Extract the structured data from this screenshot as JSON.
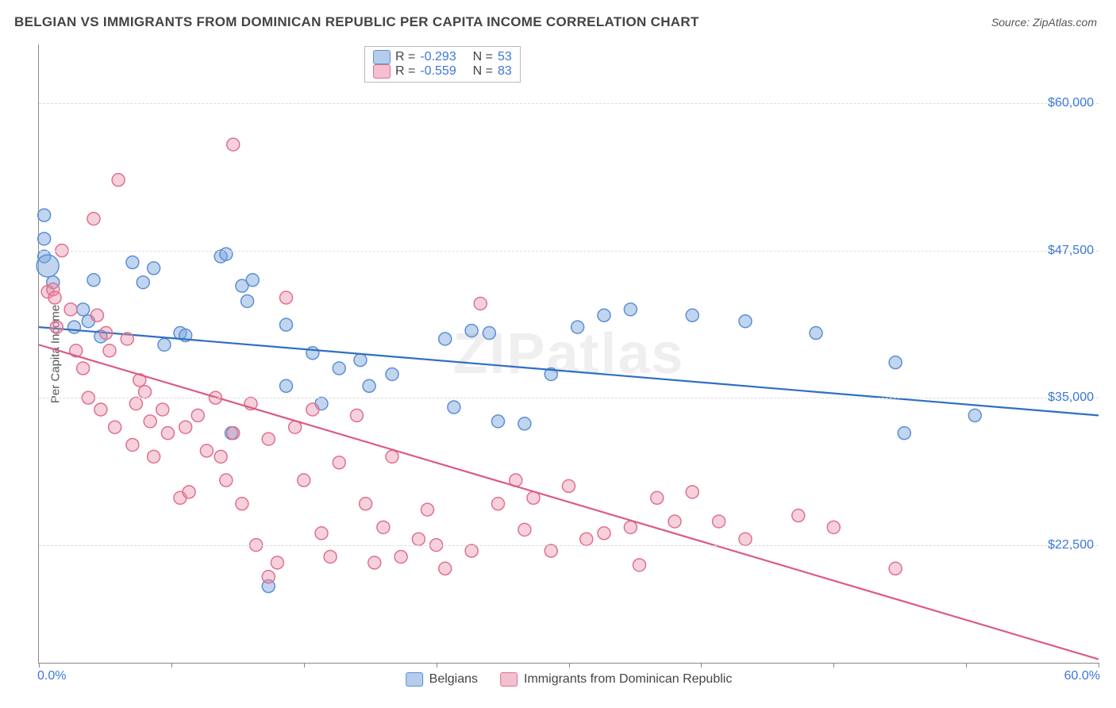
{
  "header": {
    "title": "BELGIAN VS IMMIGRANTS FROM DOMINICAN REPUBLIC PER CAPITA INCOME CORRELATION CHART",
    "source_prefix": "Source: ",
    "source": "ZipAtlas.com"
  },
  "watermark": "ZIPatlas",
  "chart": {
    "type": "scatter",
    "ylabel": "Per Capita Income",
    "xlim": [
      0,
      60
    ],
    "ylim": [
      12500,
      65000
    ],
    "yticks": [
      22500,
      35000,
      47500,
      60000
    ],
    "ytick_labels": [
      "$22,500",
      "$35,000",
      "$47,500",
      "$60,000"
    ],
    "xticks": [
      0,
      7.5,
      15,
      22.5,
      30,
      37.5,
      45,
      52.5,
      60
    ],
    "x_left_label": "0.0%",
    "x_right_label": "60.0%",
    "background_color": "#ffffff",
    "grid_color": "#dddddd",
    "axis_color": "#888888",
    "marker_radius": 8,
    "marker_stroke_width": 1.5,
    "line_width": 2.2,
    "series": [
      {
        "name": "Belgians",
        "color_fill": "rgba(120,162,219,0.45)",
        "color_stroke": "#5b8fd6",
        "line_color": "#2f6fc1",
        "R": "-0.293",
        "N": "53",
        "regression": {
          "x1": 0,
          "y1": 41000,
          "x2": 60,
          "y2": 33500
        },
        "points": [
          [
            0.3,
            50500
          ],
          [
            0.3,
            48500
          ],
          [
            0.3,
            47000
          ],
          [
            0.5,
            46200,
            14
          ],
          [
            0.8,
            44800
          ],
          [
            2.0,
            41000
          ],
          [
            2.5,
            42500
          ],
          [
            2.8,
            41500
          ],
          [
            3.1,
            45000
          ],
          [
            3.5,
            40200
          ],
          [
            5.3,
            46500
          ],
          [
            5.9,
            44800
          ],
          [
            6.5,
            46000
          ],
          [
            7.1,
            39500
          ],
          [
            8.0,
            40500
          ],
          [
            8.3,
            40300
          ],
          [
            10.3,
            47000
          ],
          [
            10.6,
            47200
          ],
          [
            10.9,
            32000
          ],
          [
            11.5,
            44500
          ],
          [
            11.8,
            43200
          ],
          [
            12.1,
            45000
          ],
          [
            13.0,
            19000
          ],
          [
            14.0,
            41200
          ],
          [
            14.0,
            36000
          ],
          [
            15.5,
            38800
          ],
          [
            16.0,
            34500
          ],
          [
            17.0,
            37500
          ],
          [
            18.2,
            38200
          ],
          [
            18.7,
            36000
          ],
          [
            20.0,
            37000
          ],
          [
            23.0,
            40000
          ],
          [
            23.5,
            34200
          ],
          [
            24.5,
            40700
          ],
          [
            25.5,
            40500
          ],
          [
            26.0,
            33000
          ],
          [
            27.5,
            32800
          ],
          [
            29.0,
            37000
          ],
          [
            30.5,
            41000
          ],
          [
            32.0,
            42000
          ],
          [
            33.5,
            42500
          ],
          [
            37.0,
            42000
          ],
          [
            40.0,
            41500
          ],
          [
            44.0,
            40500
          ],
          [
            48.5,
            38000
          ],
          [
            49.0,
            32000
          ],
          [
            53.0,
            33500
          ]
        ]
      },
      {
        "name": "Immigrants from Dominican Republic",
        "color_fill": "rgba(232,140,165,0.40)",
        "color_stroke": "#e0708f",
        "line_color": "#db5b82",
        "R": "-0.559",
        "N": "83",
        "regression": {
          "x1": 0,
          "y1": 39500,
          "x2": 60,
          "y2": 12800
        },
        "points": [
          [
            0.5,
            44000
          ],
          [
            0.8,
            44200
          ],
          [
            0.9,
            43500
          ],
          [
            1.0,
            41000
          ],
          [
            1.3,
            47500
          ],
          [
            1.8,
            42500
          ],
          [
            2.1,
            39000
          ],
          [
            2.5,
            37500
          ],
          [
            2.8,
            35000
          ],
          [
            3.1,
            50200
          ],
          [
            3.3,
            42000
          ],
          [
            3.5,
            34000
          ],
          [
            3.8,
            40500
          ],
          [
            4.0,
            39000
          ],
          [
            4.3,
            32500
          ],
          [
            4.5,
            53500
          ],
          [
            5.0,
            40000
          ],
          [
            5.3,
            31000
          ],
          [
            5.5,
            34500
          ],
          [
            5.7,
            36500
          ],
          [
            6.0,
            35500
          ],
          [
            6.3,
            33000
          ],
          [
            6.5,
            30000
          ],
          [
            7.0,
            34000
          ],
          [
            7.3,
            32000
          ],
          [
            8.0,
            26500
          ],
          [
            8.3,
            32500
          ],
          [
            8.5,
            27000
          ],
          [
            9.0,
            33500
          ],
          [
            9.5,
            30500
          ],
          [
            10.0,
            35000
          ],
          [
            10.3,
            30000
          ],
          [
            10.6,
            28000
          ],
          [
            11.0,
            56500
          ],
          [
            11.0,
            32000
          ],
          [
            11.5,
            26000
          ],
          [
            12.0,
            34500
          ],
          [
            12.3,
            22500
          ],
          [
            13.0,
            31500
          ],
          [
            13.0,
            19800
          ],
          [
            13.5,
            21000
          ],
          [
            14.0,
            43500
          ],
          [
            14.5,
            32500
          ],
          [
            15.0,
            28000
          ],
          [
            15.5,
            34000
          ],
          [
            16.0,
            23500
          ],
          [
            16.5,
            21500
          ],
          [
            17.0,
            29500
          ],
          [
            18.0,
            33500
          ],
          [
            18.5,
            26000
          ],
          [
            19.0,
            21000
          ],
          [
            19.5,
            24000
          ],
          [
            20.0,
            30000
          ],
          [
            20.5,
            21500
          ],
          [
            21.5,
            23000
          ],
          [
            22.0,
            25500
          ],
          [
            22.5,
            22500
          ],
          [
            23.0,
            20500
          ],
          [
            24.5,
            22000
          ],
          [
            25.0,
            43000
          ],
          [
            26.0,
            26000
          ],
          [
            27.0,
            28000
          ],
          [
            27.5,
            23800
          ],
          [
            28.0,
            26500
          ],
          [
            29.0,
            22000
          ],
          [
            30.0,
            27500
          ],
          [
            31.0,
            23000
          ],
          [
            32.0,
            23500
          ],
          [
            33.5,
            24000
          ],
          [
            34.0,
            20800
          ],
          [
            35.0,
            26500
          ],
          [
            36.0,
            24500
          ],
          [
            37.0,
            27000
          ],
          [
            38.5,
            24500
          ],
          [
            40.0,
            23000
          ],
          [
            43.0,
            25000
          ],
          [
            45.0,
            24000
          ],
          [
            48.5,
            20500
          ]
        ]
      }
    ]
  },
  "legend": {
    "series1_label": "Belgians",
    "series2_label": "Immigrants from Dominican Republic"
  },
  "stats_box": {
    "r_label": "R =",
    "n_label": "N ="
  }
}
